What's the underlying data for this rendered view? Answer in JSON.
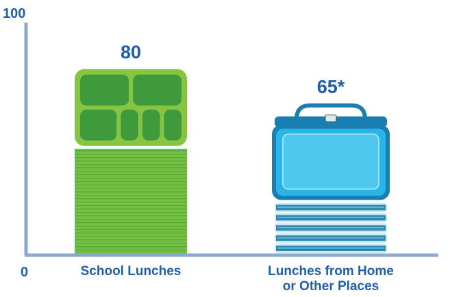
{
  "chart_data": {
    "type": "bar",
    "title": "",
    "xlabel": "",
    "ylabel": "",
    "ylim": [
      0,
      100
    ],
    "yticks": [
      0,
      100
    ],
    "categories": [
      "School Lunches",
      "Lunches from Home or Other Places"
    ],
    "category_label_lines": [
      [
        "School Lunches"
      ],
      [
        "Lunches from Home",
        "or Other Places"
      ]
    ],
    "values": [
      80,
      65
    ],
    "value_labels": [
      "80",
      "65*"
    ],
    "bar_icons": [
      "lunch-tray-icon",
      "lunch-box-icon"
    ],
    "colors": {
      "axis": "#8ea9cf",
      "text": "#1f5ea8",
      "school_bar": "#74c043",
      "school_bar_dark": "#3c8f2b",
      "tray": "#86c441",
      "tray_compartment": "#3f9a3b",
      "lunchbox": "#29b5e8",
      "lunchbox_dark": "#1a7fb0",
      "home_bar_light": "#cfe9f5",
      "home_bar_dark": "#2e87ad"
    },
    "grid": false,
    "legend": "none"
  }
}
